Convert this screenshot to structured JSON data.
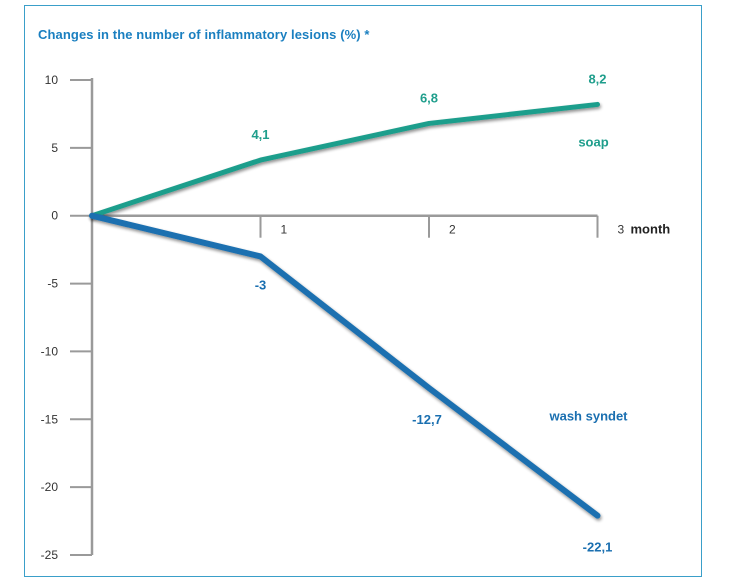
{
  "chart_data": {
    "type": "line",
    "title": "Changes in the number of inflammatory lesions (%) *",
    "xlabel": "month",
    "ylabel": "",
    "x": [
      0,
      1,
      2,
      3
    ],
    "x_tick_labels": [
      "1",
      "2",
      "3"
    ],
    "ylim": [
      -25,
      10
    ],
    "y_ticks": [
      10,
      5,
      0,
      -5,
      -10,
      -15,
      -20,
      -25
    ],
    "series": [
      {
        "name": "soap",
        "values": [
          0,
          4.1,
          6.8,
          8.2
        ],
        "labels": [
          "",
          "4,1",
          "6,8",
          "8,2"
        ],
        "color": "#1f9e8c"
      },
      {
        "name": "wash syndet",
        "values": [
          0,
          -3,
          -12.7,
          -22.1
        ],
        "labels": [
          "",
          "-3",
          "-12,7",
          "-22,1"
        ],
        "color": "#1a6fb0"
      }
    ],
    "grid": false,
    "colors": {
      "title": "#1a7fc0",
      "frame": "#3a9fc9",
      "axis": "#9a9a9a"
    }
  }
}
